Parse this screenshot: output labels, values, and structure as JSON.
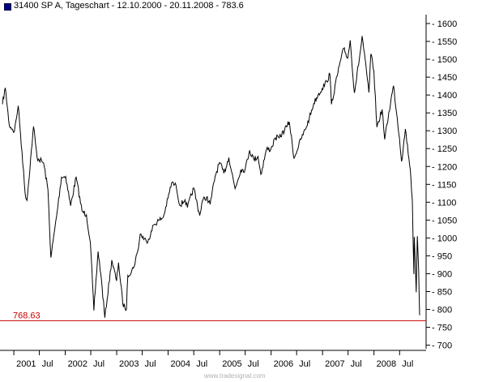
{
  "chart_data": {
    "type": "line",
    "title": "31400  SP A, Tageschart - 12.10.2000 - 20.11.2008 - 783.6",
    "watermark": "www.tradesignal.com",
    "xlabel": "",
    "ylabel": "",
    "ylim": [
      690,
      1625
    ],
    "y_ticks": [
      700,
      750,
      800,
      850,
      900,
      950,
      1000,
      1050,
      1100,
      1150,
      1200,
      1250,
      1300,
      1350,
      1400,
      1450,
      1500,
      1550,
      1600
    ],
    "x_tick_labels": [
      "2001",
      "Jul",
      "2002",
      "Jul",
      "2003",
      "Jul",
      "2004",
      "Jul",
      "2005",
      "Jul",
      "2006",
      "Jul",
      "2007",
      "Jul",
      "2008",
      "Jul"
    ],
    "x_range": [
      "2000-10-12",
      "2008-11-20"
    ],
    "grid": false,
    "line_color": "#000000",
    "reference_line": {
      "value": 768.63,
      "label": "768.63",
      "color": "#cc0000"
    },
    "series": [
      {
        "name": "",
        "points": [
          [
            "2000-10-12",
            1374
          ],
          [
            "2000-11-01",
            1420
          ],
          [
            "2000-11-30",
            1315
          ],
          [
            "2000-12-20",
            1305
          ],
          [
            "2001-01-05",
            1298
          ],
          [
            "2001-02-01",
            1370
          ],
          [
            "2001-02-28",
            1240
          ],
          [
            "2001-03-22",
            1125
          ],
          [
            "2001-04-04",
            1105
          ],
          [
            "2001-05-21",
            1312
          ],
          [
            "2001-06-15",
            1225
          ],
          [
            "2001-07-31",
            1210
          ],
          [
            "2001-08-31",
            1135
          ],
          [
            "2001-09-21",
            945
          ],
          [
            "2001-10-31",
            1060
          ],
          [
            "2001-12-05",
            1170
          ],
          [
            "2002-01-04",
            1172
          ],
          [
            "2002-02-08",
            1090
          ],
          [
            "2002-03-19",
            1170
          ],
          [
            "2002-04-30",
            1075
          ],
          [
            "2002-05-31",
            1065
          ],
          [
            "2002-06-28",
            988
          ],
          [
            "2002-07-23",
            797
          ],
          [
            "2002-08-22",
            962
          ],
          [
            "2002-09-10",
            900
          ],
          [
            "2002-10-09",
            777
          ],
          [
            "2002-11-27",
            938
          ],
          [
            "2002-12-31",
            880
          ],
          [
            "2003-01-14",
            931
          ],
          [
            "2003-02-13",
            817
          ],
          [
            "2003-03-11",
            800
          ],
          [
            "2003-03-21",
            895
          ],
          [
            "2003-04-30",
            916
          ],
          [
            "2003-05-30",
            963
          ],
          [
            "2003-06-17",
            1011
          ],
          [
            "2003-07-31",
            990
          ],
          [
            "2003-08-29",
            1008
          ],
          [
            "2003-09-19",
            1036
          ],
          [
            "2003-10-31",
            1050
          ],
          [
            "2003-11-28",
            1058
          ],
          [
            "2003-12-31",
            1111
          ],
          [
            "2004-01-26",
            1155
          ],
          [
            "2004-02-27",
            1145
          ],
          [
            "2004-03-24",
            1091
          ],
          [
            "2004-04-30",
            1107
          ],
          [
            "2004-05-17",
            1085
          ],
          [
            "2004-06-30",
            1140
          ],
          [
            "2004-08-12",
            1063
          ],
          [
            "2004-08-31",
            1104
          ],
          [
            "2004-09-30",
            1114
          ],
          [
            "2004-10-25",
            1094
          ],
          [
            "2004-11-30",
            1173
          ],
          [
            "2004-12-31",
            1211
          ],
          [
            "2005-01-31",
            1181
          ],
          [
            "2005-03-07",
            1225
          ],
          [
            "2005-04-20",
            1138
          ],
          [
            "2005-05-31",
            1191
          ],
          [
            "2005-06-30",
            1191
          ],
          [
            "2005-08-01",
            1245
          ],
          [
            "2005-08-31",
            1220
          ],
          [
            "2005-09-30",
            1228
          ],
          [
            "2005-10-20",
            1178
          ],
          [
            "2005-11-30",
            1249
          ],
          [
            "2005-12-30",
            1248
          ],
          [
            "2006-01-31",
            1280
          ],
          [
            "2006-02-28",
            1280
          ],
          [
            "2006-04-21",
            1311
          ],
          [
            "2006-05-10",
            1325
          ],
          [
            "2006-06-13",
            1223
          ],
          [
            "2006-07-31",
            1276
          ],
          [
            "2006-08-31",
            1303
          ],
          [
            "2006-09-29",
            1335
          ],
          [
            "2006-10-31",
            1377
          ],
          [
            "2006-11-30",
            1400
          ],
          [
            "2006-12-29",
            1418
          ],
          [
            "2007-01-31",
            1438
          ],
          [
            "2007-02-22",
            1459
          ],
          [
            "2007-03-05",
            1374
          ],
          [
            "2007-04-30",
            1482
          ],
          [
            "2007-05-31",
            1530
          ],
          [
            "2007-06-29",
            1503
          ],
          [
            "2007-07-16",
            1553
          ],
          [
            "2007-08-15",
            1406
          ],
          [
            "2007-09-28",
            1526
          ],
          [
            "2007-10-09",
            1565
          ],
          [
            "2007-11-26",
            1407
          ],
          [
            "2007-12-10",
            1515
          ],
          [
            "2007-12-31",
            1468
          ],
          [
            "2008-01-22",
            1310
          ],
          [
            "2008-02-28",
            1360
          ],
          [
            "2008-03-17",
            1276
          ],
          [
            "2008-04-30",
            1385
          ],
          [
            "2008-05-19",
            1426
          ],
          [
            "2008-06-30",
            1280
          ],
          [
            "2008-07-15",
            1214
          ],
          [
            "2008-08-11",
            1305
          ],
          [
            "2008-09-15",
            1192
          ],
          [
            "2008-09-29",
            1106
          ],
          [
            "2008-10-10",
            899
          ],
          [
            "2008-10-13",
            1003
          ],
          [
            "2008-10-27",
            848
          ],
          [
            "2008-11-04",
            1005
          ],
          [
            "2008-11-13",
            911
          ],
          [
            "2008-11-20",
            784
          ]
        ]
      }
    ]
  }
}
